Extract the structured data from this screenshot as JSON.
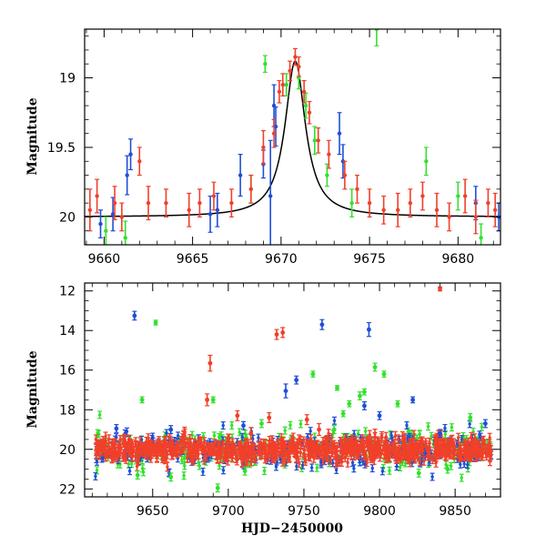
{
  "colors": {
    "blue": "#1f4fd6",
    "green": "#33e02e",
    "red": "#f0402a",
    "model": "#000000"
  },
  "chart_data": [
    {
      "type": "scatter",
      "panel": "top",
      "xlabel": "",
      "ylabel": "Magnitude",
      "xlim": [
        9658.9,
        9682.4
      ],
      "ylim": [
        20.2,
        18.65
      ],
      "xticks": [
        9660,
        9665,
        9670,
        9675,
        9680
      ],
      "yticks": [
        19,
        19.5,
        20
      ],
      "model_curve": {
        "type": "lorentzian",
        "t0": 9670.8,
        "width": 0.7,
        "baseline": 20.0,
        "peak": 18.88
      },
      "series": [
        {
          "name": "blue",
          "error_bars": true,
          "points": [
            [
              9659.8,
              20.05,
              0.1
            ],
            [
              9660.5,
              19.98,
              0.12
            ],
            [
              9661.3,
              19.7,
              0.14
            ],
            [
              9661.5,
              19.55,
              0.11
            ],
            [
              9666.0,
              19.98,
              0.13
            ],
            [
              9666.4,
              19.95,
              0.12
            ],
            [
              9667.7,
              19.7,
              0.15
            ],
            [
              9669.0,
              19.62,
              0.1
            ],
            [
              9669.4,
              19.85,
              0.4
            ],
            [
              9669.6,
              19.2,
              0.15
            ],
            [
              9669.7,
              19.35,
              0.14
            ],
            [
              9673.3,
              19.4,
              0.15
            ],
            [
              9673.5,
              19.6,
              0.12
            ],
            [
              9681.0,
              19.9,
              0.12
            ],
            [
              9682.3,
              20.0,
              0.1
            ]
          ]
        },
        {
          "name": "green",
          "error_bars": true,
          "points": [
            [
              9660.1,
              20.1,
              0.1
            ],
            [
              9661.2,
              20.15,
              0.12
            ],
            [
              9668.3,
              19.8,
              0.1
            ],
            [
              9669.1,
              18.9,
              0.06
            ],
            [
              9670.3,
              19.05,
              0.08
            ],
            [
              9671.0,
              19.0,
              0.08
            ],
            [
              9671.4,
              19.2,
              0.09
            ],
            [
              9671.9,
              19.45,
              0.1
            ],
            [
              9672.6,
              19.7,
              0.08
            ],
            [
              9674.0,
              19.9,
              0.1
            ],
            [
              9675.4,
              18.65,
              0.12
            ],
            [
              9678.2,
              19.6,
              0.1
            ],
            [
              9680.0,
              19.85,
              0.1
            ],
            [
              9681.3,
              20.15,
              0.1
            ]
          ]
        },
        {
          "name": "red",
          "error_bars": true,
          "points": [
            [
              9659.2,
              19.95,
              0.15
            ],
            [
              9659.6,
              19.85,
              0.12
            ],
            [
              9660.6,
              19.9,
              0.12
            ],
            [
              9661.0,
              20.0,
              0.1
            ],
            [
              9662.0,
              19.6,
              0.1
            ],
            [
              9662.5,
              19.9,
              0.12
            ],
            [
              9663.5,
              19.9,
              0.1
            ],
            [
              9664.8,
              19.95,
              0.12
            ],
            [
              9665.4,
              19.9,
              0.1
            ],
            [
              9666.2,
              19.85,
              0.1
            ],
            [
              9667.2,
              19.9,
              0.1
            ],
            [
              9668.3,
              19.8,
              0.1
            ],
            [
              9669.0,
              19.5,
              0.12
            ],
            [
              9669.6,
              19.4,
              0.1
            ],
            [
              9669.9,
              19.1,
              0.08
            ],
            [
              9670.1,
              19.05,
              0.08
            ],
            [
              9670.5,
              18.95,
              0.07
            ],
            [
              9670.8,
              18.85,
              0.06
            ],
            [
              9671.0,
              18.92,
              0.07
            ],
            [
              9671.3,
              19.1,
              0.08
            ],
            [
              9671.6,
              19.25,
              0.08
            ],
            [
              9672.1,
              19.45,
              0.09
            ],
            [
              9672.7,
              19.55,
              0.1
            ],
            [
              9673.6,
              19.7,
              0.1
            ],
            [
              9674.3,
              19.8,
              0.1
            ],
            [
              9675.0,
              19.9,
              0.1
            ],
            [
              9675.8,
              19.95,
              0.1
            ],
            [
              9676.6,
              19.95,
              0.12
            ],
            [
              9677.3,
              19.9,
              0.1
            ],
            [
              9678.0,
              19.85,
              0.1
            ],
            [
              9678.8,
              19.95,
              0.12
            ],
            [
              9679.5,
              20.0,
              0.1
            ],
            [
              9680.4,
              19.85,
              0.12
            ],
            [
              9681.0,
              20.0,
              0.12
            ],
            [
              9681.7,
              19.9,
              0.1
            ],
            [
              9682.1,
              19.95,
              0.12
            ]
          ]
        }
      ]
    },
    {
      "type": "scatter",
      "panel": "bottom",
      "xlabel": "HJD−2450000",
      "ylabel": "Magnitude",
      "xlim": [
        9605,
        9880
      ],
      "ylim": [
        22.4,
        11.6
      ],
      "xticks": [
        9650,
        9700,
        9750,
        9800,
        9850
      ],
      "yticks": [
        12,
        14,
        16,
        18,
        20,
        22
      ],
      "series": [
        {
          "name": "blue",
          "error_bars": true,
          "points": [
            [
              9638,
              13.25,
              0.22
            ],
            [
              9762,
              13.7,
              0.25
            ],
            [
              9793,
              13.95,
              0.35
            ],
            [
              9738,
              17.05,
              0.35
            ],
            [
              9745,
              16.5,
              0.2
            ],
            [
              9790,
              17.8,
              0.2
            ],
            [
              9822,
              17.5,
              0.15
            ],
            [
              9626,
              18.95,
              0.2
            ],
            [
              9662,
              19.0,
              0.2
            ],
            [
              9710,
              18.8,
              0.2
            ],
            [
              9800,
              18.3,
              0.2
            ],
            [
              9840,
              19.2,
              0.2
            ],
            [
              9870,
              18.7,
              0.2
            ]
          ]
        },
        {
          "name": "green",
          "error_bars": true,
          "points": [
            [
              9652,
              13.6,
              0.12
            ],
            [
              9643,
              17.5,
              0.15
            ],
            [
              9690,
              17.5,
              0.15
            ],
            [
              9756,
              16.2,
              0.15
            ],
            [
              9772,
              16.9,
              0.12
            ],
            [
              9776,
              18.2,
              0.15
            ],
            [
              9780,
              17.7,
              0.15
            ],
            [
              9787,
              17.3,
              0.2
            ],
            [
              9790,
              17.1,
              0.15
            ],
            [
              9797,
              15.85,
              0.2
            ],
            [
              9803,
              16.2,
              0.15
            ],
            [
              9812,
              17.7,
              0.15
            ],
            [
              9640,
              21.3,
              0.2
            ],
            [
              9662,
              21.4,
              0.2
            ],
            [
              9693,
              21.95,
              0.2
            ],
            [
              9711,
              21.1,
              0.2
            ],
            [
              9722,
              18.7,
              0.2
            ],
            [
              9770,
              19.0,
              0.2
            ],
            [
              9826,
              21.2,
              0.2
            ],
            [
              9845,
              21.0,
              0.2
            ],
            [
              9860,
              18.4,
              0.2
            ]
          ]
        },
        {
          "name": "red",
          "error_bars": true,
          "points": [
            [
              9732,
              14.2,
              0.25
            ],
            [
              9736,
              14.1,
              0.25
            ],
            [
              9688,
              15.65,
              0.4
            ],
            [
              9706,
              18.3,
              0.25
            ],
            [
              9727,
              18.4,
              0.25
            ],
            [
              9752,
              18.5,
              0.25
            ],
            [
              9840,
              11.9,
              0.1
            ],
            [
              9686,
              17.5,
              0.3
            ],
            [
              9715,
              19.2,
              0.3
            ],
            [
              9760,
              19.0,
              0.3
            ]
          ]
        }
      ]
    }
  ]
}
